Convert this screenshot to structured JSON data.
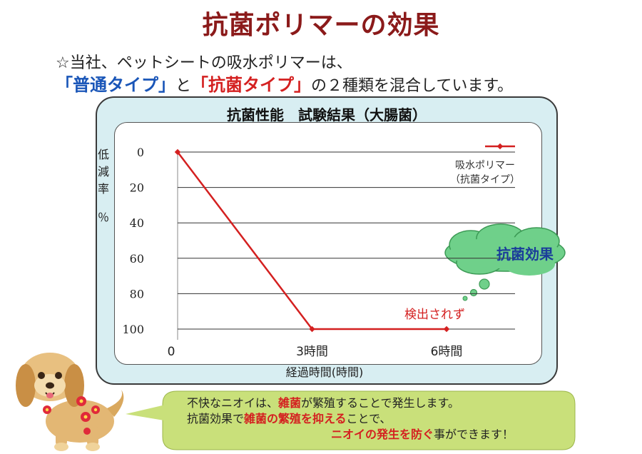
{
  "title": "抗菌ポリマーの効果",
  "intro": {
    "line1": "☆当社、ペットシートの吸水ポリマーは、",
    "normal_type": "「普通タイプ」",
    "conj": "と",
    "antibac_type": "「抗菌タイプ」",
    "tail": "の２種類を混合しています。"
  },
  "chart_data": {
    "type": "line",
    "title": "抗菌性能　試験結果（大腸菌）",
    "ylabel": [
      "低",
      "減",
      "率",
      "％"
    ],
    "xlabel": "経過時間(時間)",
    "categories": [
      "0",
      "3時間",
      "6時間"
    ],
    "y_ticks": [
      "0",
      "20",
      "40",
      "60",
      "80",
      "100"
    ],
    "ylim": [
      0,
      100
    ],
    "y_inverted": true,
    "grid": true,
    "legend_position": "top-right",
    "series": [
      {
        "name_lines": [
          "吸水ポリマー",
          "（抗菌タイプ）"
        ],
        "values": [
          0,
          100,
          100
        ],
        "color": "#d42020"
      }
    ],
    "annotation": "検出されず",
    "cloud_label": "抗菌効果"
  },
  "message": {
    "l1_a": "不快なニオイは、",
    "l1_b": "雑菌",
    "l1_c": "が繁殖することで発生します。",
    "l2_a": "抗菌効果で",
    "l2_b": "雑菌の繁殖を抑える",
    "l2_c": "ことで、",
    "l3_a": "ニオイの発生を防ぐ",
    "l3_b": "事ができます！"
  },
  "colors": {
    "title": "#8b1a1a",
    "series": "#d42020",
    "cloud": "#6fd08a",
    "bubble": "#c9e07a",
    "frame": "#d8eef2"
  }
}
